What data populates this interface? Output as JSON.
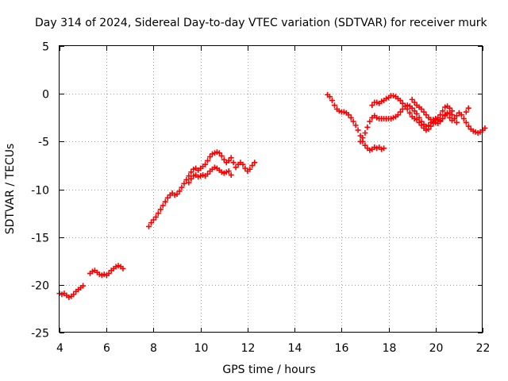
{
  "chart_data": {
    "type": "scatter",
    "title": "Day 314 of 2024, Sidereal Day-to-day VTEC variation (SDTVAR) for receiver murk",
    "xlabel": "GPS time / hours",
    "ylabel": "SDTVAR / TECUs",
    "xlim": [
      4,
      22
    ],
    "ylim": [
      -25,
      5
    ],
    "xticks": [
      4,
      6,
      8,
      10,
      12,
      14,
      16,
      18,
      20,
      22
    ],
    "yticks": [
      5,
      0,
      -5,
      -10,
      -15,
      -20,
      -25
    ],
    "grid": true,
    "marker": "+",
    "color": "#ff0000",
    "series": [
      {
        "values": [
          [
            4.0,
            -20.9
          ],
          [
            4.1,
            -21.0
          ],
          [
            4.2,
            -20.9
          ],
          [
            4.3,
            -21.1
          ],
          [
            4.4,
            -21.3
          ],
          [
            4.5,
            -21.2
          ],
          [
            4.6,
            -21.0
          ],
          [
            4.7,
            -20.7
          ],
          [
            4.8,
            -20.5
          ],
          [
            4.9,
            -20.3
          ],
          [
            5.0,
            -20.1
          ],
          [
            5.3,
            -18.8
          ],
          [
            5.4,
            -18.6
          ],
          [
            5.5,
            -18.5
          ],
          [
            5.6,
            -18.7
          ],
          [
            5.7,
            -18.9
          ],
          [
            5.8,
            -19.0
          ],
          [
            5.9,
            -18.9
          ],
          [
            6.0,
            -19.0
          ],
          [
            6.1,
            -18.8
          ],
          [
            6.2,
            -18.5
          ],
          [
            6.3,
            -18.3
          ],
          [
            6.4,
            -18.1
          ],
          [
            6.5,
            -18.0
          ],
          [
            6.6,
            -18.1
          ],
          [
            6.7,
            -18.3
          ],
          [
            7.8,
            -13.9
          ],
          [
            7.9,
            -13.5
          ],
          [
            8.0,
            -13.2
          ],
          [
            8.1,
            -12.9
          ],
          [
            8.2,
            -12.5
          ],
          [
            8.3,
            -12.1
          ],
          [
            8.4,
            -11.7
          ],
          [
            8.5,
            -11.3
          ],
          [
            8.6,
            -10.9
          ],
          [
            8.7,
            -10.6
          ],
          [
            8.8,
            -10.4
          ],
          [
            8.9,
            -10.6
          ],
          [
            9.0,
            -10.5
          ],
          [
            9.1,
            -10.2
          ],
          [
            9.2,
            -9.8
          ],
          [
            9.3,
            -9.4
          ],
          [
            9.4,
            -9.0
          ],
          [
            9.5,
            -8.6
          ],
          [
            9.6,
            -8.2
          ],
          [
            9.7,
            -7.9
          ],
          [
            9.8,
            -7.8
          ],
          [
            9.9,
            -8.0
          ],
          [
            10.0,
            -7.8
          ],
          [
            10.1,
            -7.6
          ],
          [
            10.2,
            -7.4
          ],
          [
            10.3,
            -7.0
          ],
          [
            10.4,
            -6.6
          ],
          [
            10.5,
            -6.3
          ],
          [
            10.6,
            -6.2
          ],
          [
            10.7,
            -6.1
          ],
          [
            10.8,
            -6.2
          ],
          [
            10.9,
            -6.5
          ],
          [
            11.0,
            -6.9
          ],
          [
            11.1,
            -7.2
          ],
          [
            11.2,
            -7.0
          ],
          [
            11.3,
            -6.7
          ],
          [
            11.4,
            -7.2
          ],
          [
            11.5,
            -7.7
          ],
          [
            11.6,
            -7.4
          ],
          [
            11.7,
            -7.2
          ],
          [
            11.8,
            -7.4
          ],
          [
            11.9,
            -7.8
          ],
          [
            12.0,
            -8.1
          ],
          [
            12.1,
            -7.9
          ],
          [
            12.2,
            -7.5
          ],
          [
            12.3,
            -7.2
          ],
          [
            9.5,
            -9.3
          ],
          [
            9.6,
            -8.9
          ],
          [
            9.7,
            -8.6
          ],
          [
            9.8,
            -8.5
          ],
          [
            9.9,
            -8.7
          ],
          [
            10.0,
            -8.6
          ],
          [
            10.1,
            -8.5
          ],
          [
            10.2,
            -8.6
          ],
          [
            10.3,
            -8.4
          ],
          [
            10.4,
            -8.1
          ],
          [
            10.5,
            -7.9
          ],
          [
            10.6,
            -7.7
          ],
          [
            10.7,
            -7.8
          ],
          [
            10.8,
            -8.0
          ],
          [
            10.9,
            -8.2
          ],
          [
            11.0,
            -8.3
          ],
          [
            11.1,
            -8.2
          ],
          [
            11.2,
            -8.1
          ],
          [
            11.3,
            -8.5
          ],
          [
            15.4,
            -0.1
          ],
          [
            15.5,
            -0.3
          ],
          [
            15.6,
            -0.7
          ],
          [
            15.7,
            -1.2
          ],
          [
            15.8,
            -1.6
          ],
          [
            15.9,
            -1.8
          ],
          [
            16.0,
            -1.9
          ],
          [
            16.1,
            -1.9
          ],
          [
            16.2,
            -2.0
          ],
          [
            16.3,
            -2.2
          ],
          [
            16.4,
            -2.5
          ],
          [
            16.5,
            -2.9
          ],
          [
            16.6,
            -3.3
          ],
          [
            16.7,
            -3.8
          ],
          [
            16.8,
            -4.4
          ],
          [
            16.9,
            -5.0
          ],
          [
            17.0,
            -5.4
          ],
          [
            17.1,
            -5.7
          ],
          [
            17.2,
            -5.9
          ],
          [
            17.3,
            -5.8
          ],
          [
            17.4,
            -5.6
          ],
          [
            17.5,
            -5.7
          ],
          [
            17.6,
            -5.6
          ],
          [
            17.7,
            -5.8
          ],
          [
            17.8,
            -5.7
          ],
          [
            16.8,
            -5.0
          ],
          [
            16.9,
            -4.6
          ],
          [
            17.0,
            -4.1
          ],
          [
            17.1,
            -3.5
          ],
          [
            17.2,
            -2.9
          ],
          [
            17.3,
            -2.5
          ],
          [
            17.4,
            -2.3
          ],
          [
            17.5,
            -2.5
          ],
          [
            17.6,
            -2.6
          ],
          [
            17.7,
            -2.6
          ],
          [
            17.8,
            -2.6
          ],
          [
            17.9,
            -2.6
          ],
          [
            18.0,
            -2.6
          ],
          [
            18.1,
            -2.6
          ],
          [
            18.2,
            -2.5
          ],
          [
            18.3,
            -2.4
          ],
          [
            18.4,
            -2.2
          ],
          [
            18.5,
            -1.9
          ],
          [
            18.6,
            -1.6
          ],
          [
            18.7,
            -1.3
          ],
          [
            18.8,
            -1.2
          ],
          [
            18.9,
            -1.3
          ],
          [
            19.0,
            -1.5
          ],
          [
            19.1,
            -1.8
          ],
          [
            19.2,
            -2.1
          ],
          [
            19.3,
            -2.5
          ],
          [
            19.4,
            -2.9
          ],
          [
            19.5,
            -3.2
          ],
          [
            19.6,
            -3.4
          ],
          [
            19.7,
            -3.3
          ],
          [
            19.8,
            -3.0
          ],
          [
            19.9,
            -2.7
          ],
          [
            20.0,
            -2.6
          ],
          [
            20.1,
            -2.7
          ],
          [
            20.2,
            -2.8
          ],
          [
            20.3,
            -2.6
          ],
          [
            20.4,
            -2.2
          ],
          [
            20.5,
            -2.0
          ],
          [
            20.6,
            -2.5
          ],
          [
            20.7,
            -2.8
          ],
          [
            20.8,
            -2.6
          ],
          [
            20.9,
            -2.3
          ],
          [
            21.0,
            -2.0
          ],
          [
            21.1,
            -2.2
          ],
          [
            21.2,
            -2.6
          ],
          [
            21.3,
            -1.9
          ],
          [
            21.4,
            -1.5
          ],
          [
            17.3,
            -1.2
          ],
          [
            17.4,
            -0.9
          ],
          [
            17.5,
            -0.9
          ],
          [
            17.6,
            -1.0
          ],
          [
            17.7,
            -0.8
          ],
          [
            17.8,
            -0.7
          ],
          [
            17.9,
            -0.5
          ],
          [
            18.0,
            -0.4
          ],
          [
            18.1,
            -0.2
          ],
          [
            18.2,
            -0.2
          ],
          [
            18.3,
            -0.3
          ],
          [
            18.4,
            -0.5
          ],
          [
            18.5,
            -0.7
          ],
          [
            18.6,
            -1.0
          ],
          [
            18.7,
            -1.3
          ],
          [
            18.8,
            -1.6
          ],
          [
            18.9,
            -2.0
          ],
          [
            19.0,
            -2.4
          ],
          [
            19.1,
            -2.6
          ],
          [
            19.2,
            -2.7
          ],
          [
            19.3,
            -3.0
          ],
          [
            19.4,
            -3.3
          ],
          [
            19.5,
            -3.6
          ],
          [
            19.6,
            -3.8
          ],
          [
            19.7,
            -3.7
          ],
          [
            19.8,
            -3.4
          ],
          [
            19.9,
            -3.1
          ],
          [
            20.0,
            -2.8
          ],
          [
            20.1,
            -2.5
          ],
          [
            20.2,
            -2.2
          ],
          [
            20.3,
            -1.8
          ],
          [
            20.4,
            -1.4
          ],
          [
            20.5,
            -1.3
          ],
          [
            20.6,
            -1.5
          ],
          [
            20.7,
            -1.8
          ],
          [
            19.0,
            -0.6
          ],
          [
            19.1,
            -0.9
          ],
          [
            19.2,
            -1.2
          ],
          [
            19.3,
            -1.4
          ],
          [
            19.4,
            -1.6
          ],
          [
            19.5,
            -1.9
          ],
          [
            19.6,
            -2.2
          ],
          [
            19.7,
            -2.5
          ],
          [
            19.8,
            -2.7
          ],
          [
            19.9,
            -2.9
          ],
          [
            20.0,
            -3.0
          ],
          [
            20.1,
            -3.1
          ],
          [
            20.2,
            -2.9
          ],
          [
            20.3,
            -2.6
          ],
          [
            20.4,
            -2.3
          ],
          [
            20.5,
            -2.1
          ],
          [
            20.6,
            -2.0
          ],
          [
            20.7,
            -2.2
          ],
          [
            20.8,
            -2.6
          ],
          [
            20.9,
            -3.0
          ],
          [
            21.3,
            -3.0
          ],
          [
            21.4,
            -3.4
          ],
          [
            21.5,
            -3.7
          ],
          [
            21.6,
            -3.9
          ],
          [
            21.7,
            -4.0
          ],
          [
            21.8,
            -4.1
          ],
          [
            21.9,
            -4.0
          ],
          [
            22.0,
            -3.8
          ],
          [
            22.1,
            -3.6
          ]
        ]
      }
    ]
  }
}
